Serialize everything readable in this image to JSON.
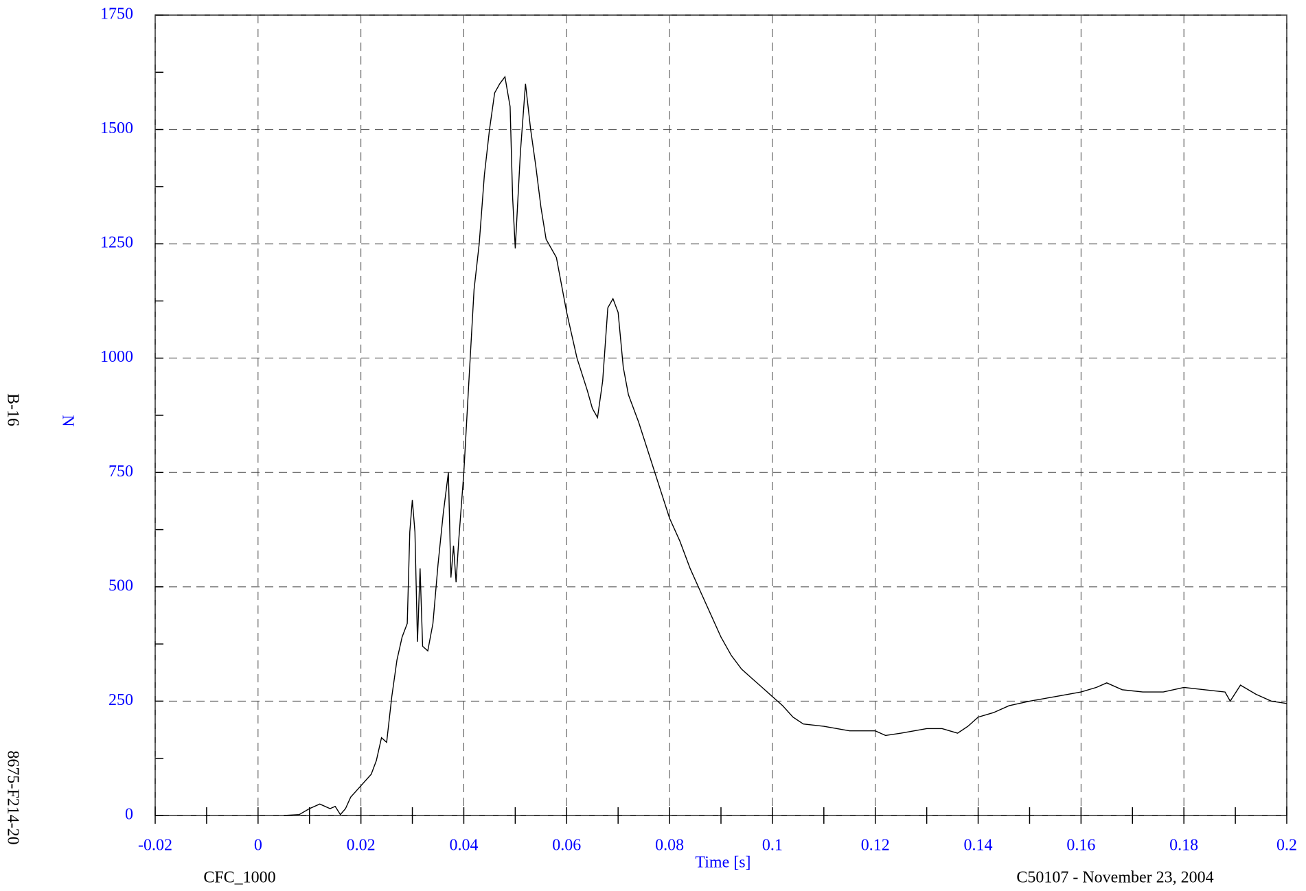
{
  "chart_data": {
    "type": "line",
    "x_label": "Time [s]",
    "y_label": "N",
    "left_labels": [
      "B-16",
      "8675-F214-20"
    ],
    "footer_left": "CFC_1000",
    "footer_right": "C50107 - November 23, 2004",
    "xlim": [
      -0.02,
      0.2
    ],
    "xticks": [
      -0.02,
      0,
      0.02,
      0.04,
      0.06,
      0.08,
      0.1,
      0.12,
      0.14,
      0.16,
      0.18,
      0.2
    ],
    "minor_xticks": [
      -0.01,
      0.01,
      0.03,
      0.05,
      0.07,
      0.09,
      0.11,
      0.13,
      0.15,
      0.17,
      0.19
    ],
    "ylim": [
      0,
      1750
    ],
    "yticks": [
      0,
      250,
      500,
      750,
      1000,
      1250,
      1500,
      1750
    ],
    "minor_yticks": [
      125,
      375,
      625,
      875,
      1125,
      1375,
      1625
    ],
    "grid": true,
    "x": [
      0.005,
      0.008,
      0.01,
      0.012,
      0.014,
      0.015,
      0.016,
      0.017,
      0.018,
      0.02,
      0.022,
      0.023,
      0.024,
      0.025,
      0.026,
      0.027,
      0.028,
      0.029,
      0.0295,
      0.03,
      0.0305,
      0.031,
      0.0315,
      0.032,
      0.033,
      0.034,
      0.035,
      0.036,
      0.037,
      0.0375,
      0.038,
      0.0385,
      0.039,
      0.04,
      0.041,
      0.042,
      0.043,
      0.044,
      0.045,
      0.046,
      0.047,
      0.048,
      0.049,
      0.0495,
      0.05,
      0.051,
      0.052,
      0.053,
      0.054,
      0.055,
      0.056,
      0.058,
      0.06,
      0.062,
      0.064,
      0.065,
      0.066,
      0.067,
      0.068,
      0.069,
      0.07,
      0.071,
      0.072,
      0.074,
      0.076,
      0.078,
      0.08,
      0.082,
      0.084,
      0.086,
      0.088,
      0.09,
      0.092,
      0.094,
      0.096,
      0.098,
      0.1,
      0.102,
      0.104,
      0.106,
      0.11,
      0.115,
      0.12,
      0.122,
      0.125,
      0.13,
      0.133,
      0.136,
      0.138,
      0.14,
      0.143,
      0.146,
      0.15,
      0.155,
      0.16,
      0.163,
      0.165,
      0.168,
      0.172,
      0.176,
      0.18,
      0.184,
      0.188,
      0.189,
      0.191,
      0.194,
      0.197,
      0.2
    ],
    "series": [
      {
        "color": "#000000",
        "values": [
          0,
          2,
          15,
          25,
          15,
          20,
          2,
          15,
          40,
          65,
          90,
          120,
          170,
          160,
          260,
          340,
          390,
          420,
          620,
          690,
          620,
          380,
          540,
          370,
          360,
          420,
          550,
          660,
          750,
          520,
          590,
          510,
          600,
          750,
          950,
          1150,
          1250,
          1400,
          1500,
          1580,
          1600,
          1615,
          1550,
          1350,
          1240,
          1450,
          1600,
          1500,
          1420,
          1330,
          1260,
          1220,
          1100,
          1000,
          930,
          890,
          870,
          950,
          1110,
          1130,
          1100,
          980,
          920,
          860,
          790,
          720,
          650,
          600,
          540,
          490,
          440,
          390,
          350,
          320,
          300,
          280,
          260,
          240,
          215,
          200,
          195,
          185,
          185,
          175,
          180,
          190,
          190,
          180,
          195,
          215,
          225,
          240,
          250,
          260,
          270,
          280,
          290,
          275,
          270,
          270,
          280,
          275,
          270,
          250,
          285,
          265,
          250,
          245
        ]
      }
    ]
  }
}
